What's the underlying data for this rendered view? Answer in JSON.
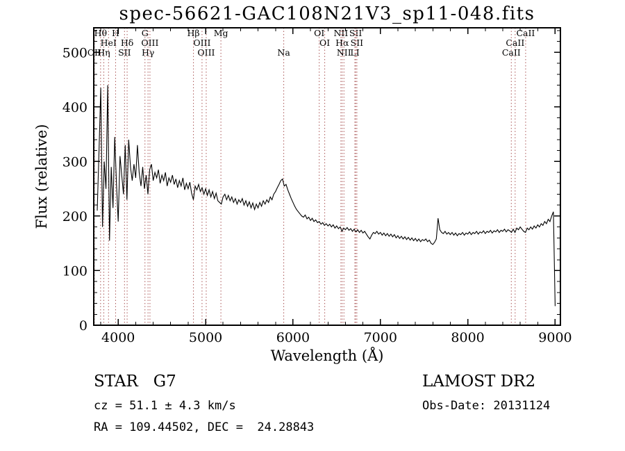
{
  "colors": {
    "background": "#ffffff",
    "spectrum": "#000000",
    "marker_line": "#aa5555",
    "axis": "#000000",
    "text": "#000000"
  },
  "chart_data": {
    "type": "line",
    "title": "spec-56621-GAC108N21V3_sp11-048.fits",
    "xlabel": "Wavelength (Å)",
    "ylabel": "Flux (relative)",
    "xlim": [
      3720,
      9060
    ],
    "ylim": [
      0,
      545
    ],
    "x_ticks": [
      4000,
      5000,
      6000,
      7000,
      8000,
      9000
    ],
    "y_ticks": [
      0,
      100,
      200,
      300,
      400,
      500
    ],
    "x_minor_step": 200,
    "y_minor_step": 20,
    "grid": false,
    "legend": false,
    "series": [
      {
        "name": "flux",
        "x_start": 3760,
        "x_step": 20,
        "values": [
          210,
          320,
          435,
          180,
          300,
          250,
          440,
          155,
          290,
          215,
          345,
          260,
          190,
          310,
          275,
          240,
          330,
          230,
          340,
          290,
          265,
          295,
          270,
          330,
          280,
          255,
          290,
          250,
          275,
          240,
          285,
          295,
          265,
          280,
          270,
          285,
          260,
          275,
          265,
          280,
          255,
          270,
          262,
          275,
          258,
          268,
          252,
          265,
          255,
          270,
          248,
          260,
          250,
          262,
          242,
          230,
          255,
          248,
          258,
          245,
          252,
          240,
          250,
          238,
          248,
          235,
          245,
          232,
          242,
          228,
          225,
          222,
          235,
          240,
          230,
          238,
          228,
          235,
          225,
          232,
          222,
          230,
          225,
          232,
          220,
          228,
          218,
          226,
          215,
          224,
          212,
          222,
          215,
          225,
          218,
          228,
          222,
          230,
          225,
          235,
          230,
          240,
          245,
          252,
          258,
          265,
          268,
          255,
          258,
          248,
          240,
          232,
          225,
          218,
          212,
          208,
          204,
          200,
          198,
          202,
          195,
          198,
          192,
          196,
          190,
          193,
          188,
          190,
          185,
          188,
          183,
          186,
          182,
          185,
          180,
          184,
          178,
          182,
          177,
          180,
          172,
          178,
          175,
          179,
          174,
          177,
          172,
          176,
          171,
          175,
          170,
          174,
          169,
          172,
          167,
          162,
          158,
          165,
          170,
          168,
          172,
          167,
          170,
          165,
          169,
          164,
          168,
          163,
          167,
          162,
          166,
          160,
          164,
          159,
          163,
          158,
          162,
          157,
          161,
          156,
          160,
          155,
          159,
          154,
          158,
          153,
          157,
          155,
          158,
          153,
          156,
          150,
          148,
          152,
          158,
          196,
          175,
          170,
          168,
          172,
          167,
          170,
          166,
          170,
          165,
          169,
          164,
          168,
          166,
          170,
          165,
          169,
          167,
          171,
          166,
          170,
          168,
          172,
          167,
          171,
          169,
          173,
          168,
          172,
          170,
          174,
          169,
          173,
          171,
          175,
          170,
          174,
          172,
          176,
          171,
          175,
          173,
          170,
          176,
          170,
          178,
          175,
          180,
          176,
          172,
          170,
          178,
          175,
          180,
          176,
          182,
          178,
          184,
          180,
          186,
          183,
          190,
          186,
          194,
          190,
          200,
          208,
          35
        ]
      }
    ],
    "line_markers": [
      {
        "label": "Hθ",
        "wavelength": 3798,
        "row": 1
      },
      {
        "label": "H",
        "wavelength": 3970,
        "row": 1
      },
      {
        "label": "HeI",
        "wavelength": 3889,
        "row": 2
      },
      {
        "label": "Hδ",
        "wavelength": 4102,
        "row": 2
      },
      {
        "label": "OII",
        "wavelength": 3727,
        "row": 3
      },
      {
        "label": "Hη",
        "wavelength": 3835,
        "row": 3
      },
      {
        "label": "SII",
        "wavelength": 4072,
        "row": 3
      },
      {
        "label": "G",
        "wavelength": 4306,
        "row": 1
      },
      {
        "label": "OIII",
        "wavelength": 4363,
        "row": 2
      },
      {
        "label": "Hγ",
        "wavelength": 4341,
        "row": 3
      },
      {
        "label": "Hβ",
        "wavelength": 4861,
        "row": 1
      },
      {
        "label": "OIII",
        "wavelength": 4959,
        "row": 2
      },
      {
        "label": "OIII",
        "wavelength": 5007,
        "row": 3
      },
      {
        "label": "Mg",
        "wavelength": 5175,
        "row": 1
      },
      {
        "label": "Na",
        "wavelength": 5894,
        "row": 3
      },
      {
        "label": "OI",
        "wavelength": 6300,
        "row": 1
      },
      {
        "label": "OI",
        "wavelength": 6363,
        "row": 2
      },
      {
        "label": "NII",
        "wavelength": 6548,
        "row": 1
      },
      {
        "label": "SII",
        "wavelength": 6717,
        "row": 1
      },
      {
        "label": "Hα",
        "wavelength": 6563,
        "row": 2
      },
      {
        "label": "SII",
        "wavelength": 6731,
        "row": 2
      },
      {
        "label": "NII",
        "wavelength": 6583,
        "row": 3
      },
      {
        "label": "LI",
        "wavelength": 6708,
        "row": 3
      },
      {
        "label": "CaII",
        "wavelength": 8662,
        "row": 1
      },
      {
        "label": "CaII",
        "wavelength": 8542,
        "row": 2
      },
      {
        "label": "CaII",
        "wavelength": 8498,
        "row": 3
      }
    ]
  },
  "footer": {
    "object_class": "STAR   G7",
    "survey": "LAMOST DR2",
    "cz": "cz = 51.1 ± 4.3 km/s",
    "obs_date": "Obs-Date: 20131124",
    "coordinates": "RA = 109.44502, DEC =  24.28843"
  }
}
